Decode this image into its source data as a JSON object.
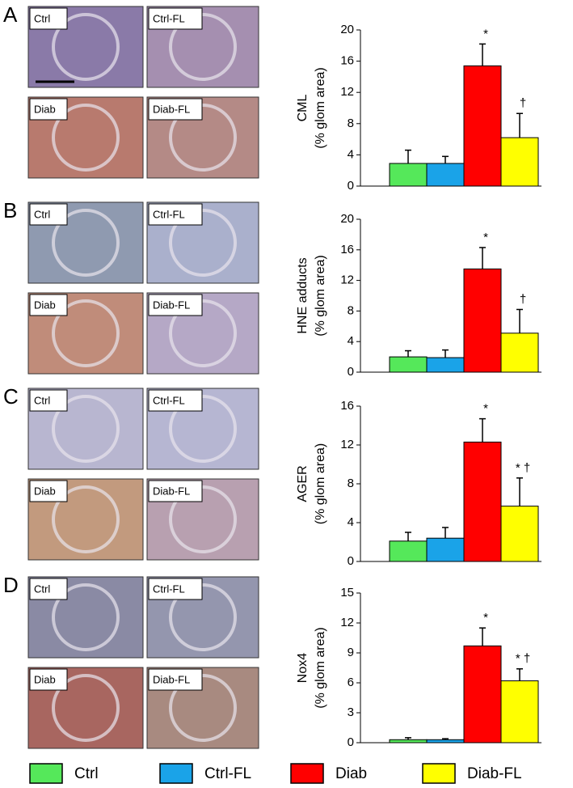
{
  "panels": [
    {
      "letter": "A",
      "images": [
        "Ctrl",
        "Ctrl-FL",
        "Diab",
        "Diab-FL"
      ]
    },
    {
      "letter": "B",
      "images": [
        "Ctrl",
        "Ctrl-FL",
        "Diab",
        "Diab-FL"
      ]
    },
    {
      "letter": "C",
      "images": [
        "Ctrl",
        "Ctrl-FL",
        "Diab",
        "Diab-FL"
      ]
    },
    {
      "letter": "D",
      "images": [
        "Ctrl",
        "Ctrl-FL",
        "Diab",
        "Diab-FL"
      ]
    }
  ],
  "legend": [
    {
      "name": "Ctrl",
      "color": "#55e85a"
    },
    {
      "name": "Ctrl-FL",
      "color": "#1aa3e8"
    },
    {
      "name": "Diab",
      "color": "#ff0000"
    },
    {
      "name": "Diab-FL",
      "color": "#ffff00"
    }
  ],
  "chart_data": [
    {
      "type": "bar",
      "ylabel": [
        "CML",
        "(% glom area)"
      ],
      "values": [
        2.9,
        2.9,
        15.4,
        6.2
      ],
      "errors": [
        1.7,
        0.9,
        2.8,
        3.1
      ],
      "ylim": [
        0,
        20
      ],
      "yticks": [
        0,
        4,
        8,
        12,
        16,
        20
      ],
      "annotations": [
        {
          "index": 2,
          "text": "*"
        },
        {
          "index": 3,
          "text": "†"
        }
      ]
    },
    {
      "type": "bar",
      "ylabel": [
        "HNE adducts",
        "(% glom area)"
      ],
      "values": [
        2.0,
        1.9,
        13.5,
        5.1
      ],
      "errors": [
        0.8,
        1.0,
        2.8,
        3.1
      ],
      "ylim": [
        0,
        20
      ],
      "yticks": [
        0,
        4,
        8,
        12,
        16,
        20
      ],
      "annotations": [
        {
          "index": 2,
          "text": "*"
        },
        {
          "index": 3,
          "text": "†"
        }
      ]
    },
    {
      "type": "bar",
      "ylabel": [
        "AGER",
        "(% glom area)"
      ],
      "values": [
        2.1,
        2.4,
        12.3,
        5.7
      ],
      "errors": [
        0.9,
        1.1,
        2.4,
        2.9
      ],
      "ylim": [
        0,
        16
      ],
      "yticks": [
        0,
        4,
        8,
        12,
        16
      ],
      "annotations": [
        {
          "index": 2,
          "text": "*"
        },
        {
          "index": 3,
          "text": "* †"
        }
      ]
    },
    {
      "type": "bar",
      "ylabel": [
        "Nox4",
        "(% glom area)"
      ],
      "values": [
        0.3,
        0.3,
        9.7,
        6.2
      ],
      "errors": [
        0.2,
        0.1,
        1.8,
        1.2
      ],
      "ylim": [
        0,
        15
      ],
      "yticks": [
        0,
        3,
        6,
        9,
        12,
        15
      ],
      "annotations": [
        {
          "index": 2,
          "text": "*"
        },
        {
          "index": 3,
          "text": "* †"
        }
      ]
    }
  ]
}
